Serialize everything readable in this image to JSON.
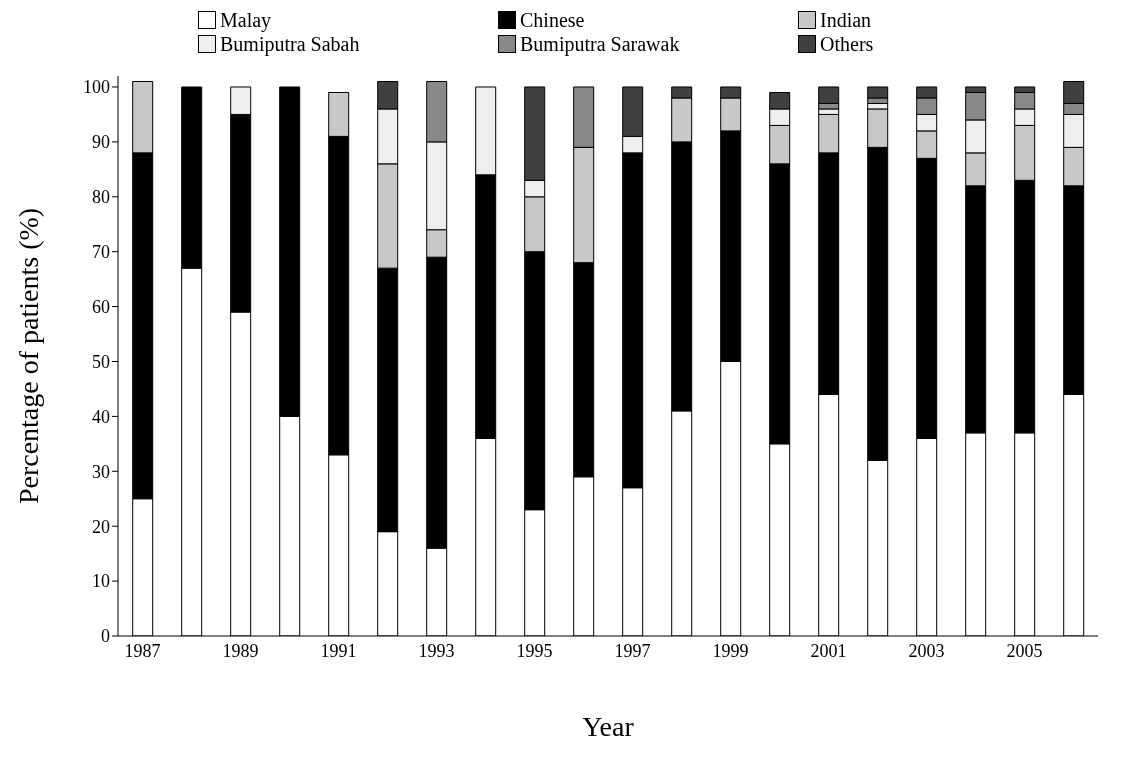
{
  "chart_data": {
    "type": "bar",
    "stacked": true,
    "xlabel": "Year",
    "ylabel": "Percentage of patients (%)",
    "categories": [
      "1987",
      null,
      "1989",
      null,
      "1991",
      null,
      "1993",
      null,
      "1995",
      null,
      "1997",
      null,
      "1999",
      null,
      "2001",
      null,
      "2003",
      null,
      "2005",
      null
    ],
    "series": [
      {
        "name": "Malay",
        "color": "#ffffff",
        "values": [
          25,
          67,
          59,
          40,
          33,
          19,
          16,
          36,
          23,
          29,
          27,
          41,
          50,
          35,
          44,
          32,
          36,
          37,
          37,
          44
        ]
      },
      {
        "name": "Chinese",
        "color": "#000000",
        "values": [
          63,
          33,
          36,
          60,
          58,
          48,
          53,
          48,
          47,
          39,
          61,
          49,
          42,
          51,
          44,
          57,
          51,
          45,
          46,
          38
        ]
      },
      {
        "name": "Indian",
        "color": "#c8c8c8",
        "values": [
          13,
          0,
          0,
          0,
          8,
          19,
          5,
          0,
          10,
          21,
          0,
          8,
          6,
          7,
          7,
          7,
          5,
          6,
          10,
          7
        ]
      },
      {
        "name": "Bumiputra Sabah",
        "color": "#eeeeee",
        "values": [
          0,
          0,
          5,
          0,
          0,
          10,
          16,
          16,
          3,
          0,
          3,
          0,
          0,
          3,
          1,
          1,
          3,
          6,
          3,
          6
        ]
      },
      {
        "name": "Bumiputra Sarawak",
        "color": "#888888",
        "values": [
          0,
          0,
          0,
          0,
          0,
          0,
          11,
          0,
          0,
          11,
          0,
          0,
          0,
          0,
          1,
          1,
          3,
          5,
          3,
          2
        ]
      },
      {
        "name": "Others",
        "color": "#404040",
        "values": [
          0,
          0,
          0,
          0,
          0,
          5,
          0,
          0,
          17,
          0,
          9,
          2,
          2,
          3,
          3,
          2,
          2,
          1,
          1,
          4
        ]
      }
    ],
    "ylim": [
      0,
      102
    ],
    "yticks": [
      0,
      10,
      20,
      30,
      40,
      50,
      60,
      70,
      80,
      90,
      100
    ],
    "grid": false,
    "legend": "top"
  }
}
